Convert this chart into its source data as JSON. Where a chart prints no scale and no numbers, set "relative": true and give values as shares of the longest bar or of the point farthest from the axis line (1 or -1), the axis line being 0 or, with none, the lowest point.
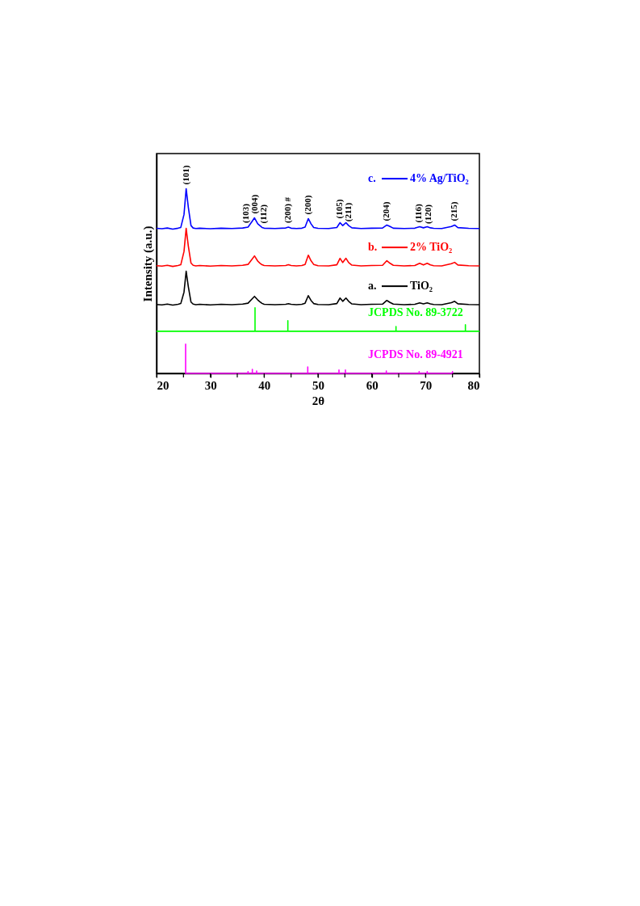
{
  "chart_data": {
    "type": "line",
    "xlabel": "2θ",
    "ylabel": "Intensity (a.u.)",
    "relative": true,
    "xlim": [
      20,
      80
    ],
    "xticks": [
      20,
      {
        "value": 25,
        "label": null
      },
      30,
      {
        "value": 35,
        "label": null
      },
      40,
      {
        "value": 45,
        "label": null
      },
      50,
      {
        "value": 55,
        "label": null
      },
      60,
      {
        "value": 65,
        "label": null
      },
      70,
      {
        "value": 75,
        "label": null
      },
      80
    ],
    "grid": false,
    "marker": "none",
    "line_style": "solid",
    "x": [
      20,
      21,
      22,
      23,
      24,
      24.5,
      25.1,
      25.5,
      25.9,
      26.4,
      26.8,
      27.3,
      28,
      30,
      32,
      34,
      36,
      37,
      37.8,
      38.2,
      38.8,
      39.2,
      39.6,
      40,
      42,
      44,
      44.5,
      45,
      46,
      47,
      47.6,
      48.2,
      48.7,
      49.2,
      50,
      52,
      53.5,
      54.1,
      54.6,
      55.2,
      55.7,
      56.3,
      58,
      60,
      62,
      62.8,
      63.4,
      64,
      66,
      68,
      68.9,
      69.6,
      70.3,
      70.9,
      71.5,
      73,
      74.8,
      75.4,
      76,
      78,
      80
    ],
    "series": [
      {
        "name": "c. 4% Ag/TiO₂",
        "color": "#0000ff",
        "values": [
          0.785,
          0.783,
          0.787,
          0.781,
          0.786,
          0.79,
          0.86,
          1.0,
          0.9,
          0.8,
          0.787,
          0.784,
          0.786,
          0.783,
          0.786,
          0.784,
          0.787,
          0.792,
          0.825,
          0.842,
          0.81,
          0.8,
          0.79,
          0.786,
          0.784,
          0.787,
          0.792,
          0.786,
          0.784,
          0.786,
          0.792,
          0.838,
          0.81,
          0.79,
          0.785,
          0.784,
          0.79,
          0.816,
          0.8,
          0.816,
          0.8,
          0.788,
          0.784,
          0.786,
          0.787,
          0.803,
          0.795,
          0.786,
          0.784,
          0.786,
          0.794,
          0.788,
          0.794,
          0.788,
          0.785,
          0.784,
          0.795,
          0.803,
          0.789,
          0.785,
          0.784
        ]
      },
      {
        "name": "b. 2% TiO₂",
        "color": "#ff0000",
        "values": [
          0.583,
          0.581,
          0.585,
          0.579,
          0.584,
          0.588,
          0.66,
          0.785,
          0.69,
          0.597,
          0.585,
          0.582,
          0.584,
          0.581,
          0.584,
          0.582,
          0.585,
          0.59,
          0.62,
          0.636,
          0.608,
          0.597,
          0.588,
          0.584,
          0.582,
          0.584,
          0.588,
          0.584,
          0.582,
          0.584,
          0.59,
          0.64,
          0.61,
          0.59,
          0.583,
          0.582,
          0.588,
          0.623,
          0.6,
          0.623,
          0.6,
          0.586,
          0.582,
          0.584,
          0.585,
          0.61,
          0.596,
          0.585,
          0.582,
          0.584,
          0.596,
          0.587,
          0.596,
          0.587,
          0.583,
          0.582,
          0.594,
          0.601,
          0.587,
          0.583,
          0.582
        ]
      },
      {
        "name": "a. TiO₂",
        "color": "#000000",
        "values": [
          0.373,
          0.371,
          0.375,
          0.37,
          0.374,
          0.378,
          0.44,
          0.553,
          0.47,
          0.386,
          0.375,
          0.372,
          0.374,
          0.371,
          0.374,
          0.372,
          0.375,
          0.38,
          0.405,
          0.417,
          0.398,
          0.388,
          0.379,
          0.374,
          0.372,
          0.374,
          0.377,
          0.374,
          0.372,
          0.374,
          0.38,
          0.421,
          0.395,
          0.378,
          0.373,
          0.372,
          0.378,
          0.408,
          0.39,
          0.408,
          0.39,
          0.376,
          0.372,
          0.374,
          0.375,
          0.395,
          0.384,
          0.375,
          0.372,
          0.374,
          0.382,
          0.376,
          0.382,
          0.376,
          0.373,
          0.372,
          0.383,
          0.39,
          0.377,
          0.373,
          0.372
        ]
      },
      {
        "name": "JCPDS No. 89-3722",
        "color": "#00ff00",
        "x": [
          20,
          38.3,
          38.3,
          38.3,
          44.4,
          44.4,
          44.4,
          64.5,
          64.5,
          64.5,
          77.4,
          77.4,
          77.4,
          80
        ],
        "values": [
          0.228,
          0.228,
          0.355,
          0.228,
          0.228,
          0.285,
          0.228,
          0.228,
          0.254,
          0.228,
          0.228,
          0.263,
          0.228,
          0.228
        ]
      },
      {
        "name": "JCPDS No. 89-4921",
        "color": "#ff00ff",
        "x": [
          25.4,
          25.4,
          25.4,
          37.0,
          37.0,
          37.0,
          37.8,
          37.8,
          37.8,
          38.6,
          38.6,
          38.6,
          48.1,
          48.1,
          48.1,
          53.9,
          53.9,
          53.9,
          55.1,
          55.1,
          55.1,
          62.7,
          62.7,
          62.7,
          68.8,
          68.8,
          68.8,
          70.3,
          70.3,
          70.3,
          75.0,
          75.0,
          75.0
        ],
        "values": [
          0,
          0.158,
          0,
          0,
          0.01,
          0,
          0,
          0.022,
          0,
          0,
          0.013,
          0,
          0,
          0.035,
          0,
          0,
          0.018,
          0,
          0,
          0.018,
          0,
          0,
          0.013,
          0,
          0,
          0.01,
          0,
          0,
          0.01,
          0,
          0,
          0.01,
          0
        ]
      }
    ],
    "annotations": [
      {
        "text": "(101)",
        "x": 25.5,
        "y": 1.0
      },
      {
        "text": "(103)",
        "x": 36.6,
        "y": 0.792
      },
      {
        "text": "(004)",
        "x": 38.3,
        "y": 0.842
      },
      {
        "text": "(112)",
        "x": 40.0,
        "y": 0.79
      },
      {
        "text": "(200) #",
        "x": 44.5,
        "y": 0.792
      },
      {
        "text": "(200)",
        "x": 48.2,
        "y": 0.838
      },
      {
        "text": "(105)",
        "x": 54.0,
        "y": 0.816
      },
      {
        "text": "(211)",
        "x": 55.7,
        "y": 0.8
      },
      {
        "text": "(204)",
        "x": 62.8,
        "y": 0.803
      },
      {
        "text": "(116)",
        "x": 68.8,
        "y": 0.794
      },
      {
        "text": "(120)",
        "x": 70.5,
        "y": 0.788
      },
      {
        "text": "(215)",
        "x": 75.4,
        "y": 0.803
      }
    ]
  }
}
